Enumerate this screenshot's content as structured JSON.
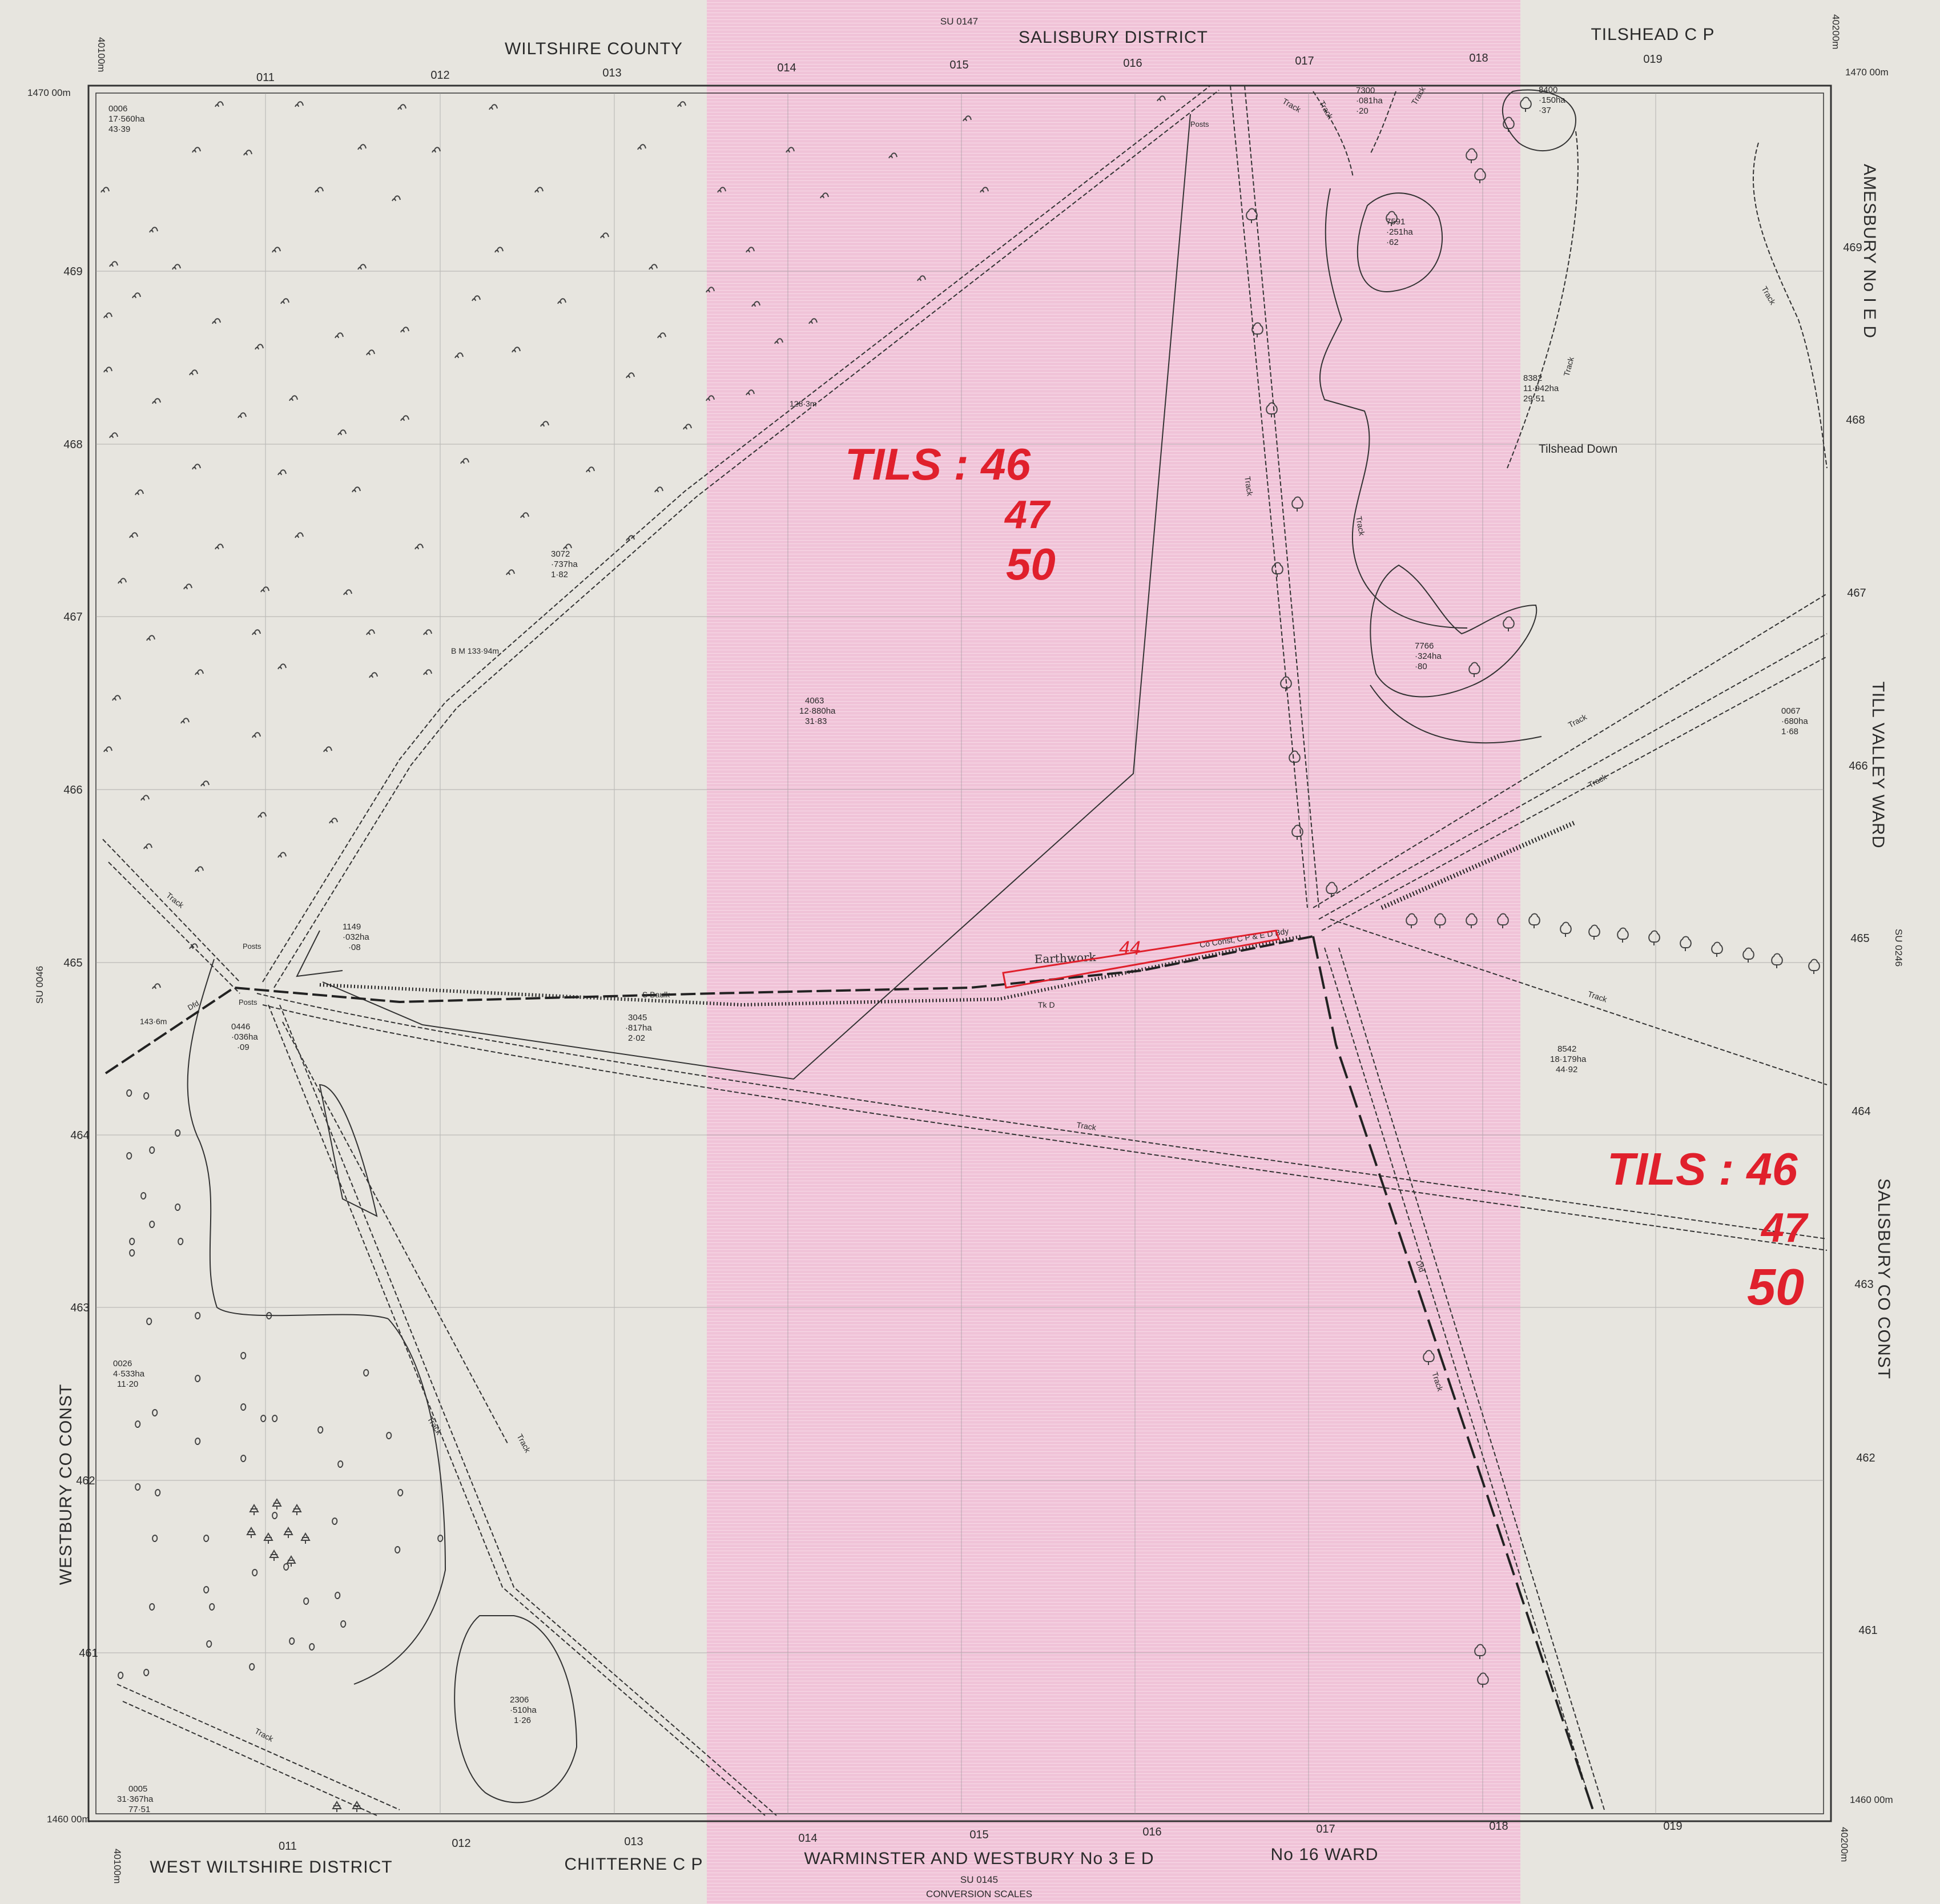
{
  "sheet": {
    "top_ref": "SU 0147",
    "bottom_ref": "SU 0145",
    "left_ref": "SU 0046",
    "right_ref": "SU 0246",
    "bottom_caption": "CONVERSION SCALES"
  },
  "boundaries": {
    "top_left": "WILTSHIRE COUNTY",
    "top_center": "SALISBURY DISTRICT",
    "top_right": "TILSHEAD C P",
    "right_upper": "AMESBURY No I E D",
    "right_middle": "TILL VALLEY WARD",
    "right_lower": "SALISBURY CO CONST",
    "left": "WESTBURY CO CONST",
    "bottom_1": "WEST WILTSHIRE DISTRICT",
    "bottom_2": "CHITTERNE C P",
    "bottom_3": "WARMINSTER AND WESTBURY No 3 E D",
    "bottom_4": "No 16 WARD"
  },
  "grid": {
    "eastings": [
      "011",
      "012",
      "013",
      "014",
      "015",
      "016",
      "017",
      "018",
      "019"
    ],
    "northings": [
      "469",
      "468",
      "467",
      "466",
      "465",
      "464",
      "463",
      "462",
      "461"
    ],
    "corner_nw_e": "40100m",
    "corner_nw_n": "1470 00m",
    "corner_ne_e": "40200m",
    "corner_ne_n": "1470 00m",
    "corner_sw_e": "40100m",
    "corner_sw_n": "1460 00m",
    "corner_se_e": "40200m",
    "corner_se_n": "1460 00m"
  },
  "parcels": [
    {
      "id": "0006",
      "ha": "17·560ha",
      "ac": "43·39"
    },
    {
      "id": "7300",
      "ha": "·081ha",
      "ac": "·20"
    },
    {
      "id": "8400",
      "ha": "·150ha",
      "ac": "·37"
    },
    {
      "id": "7591",
      "ha": "·251ha",
      "ac": "·62"
    },
    {
      "id": "8382",
      "ha": "11·942ha",
      "ac": "29·51"
    },
    {
      "id": "3072",
      "ha": "·737ha",
      "ac": "1·82"
    },
    {
      "id": "7766",
      "ha": "·324ha",
      "ac": "·80"
    },
    {
      "id": "4063",
      "ha": "12·880ha",
      "ac": "31·83"
    },
    {
      "id": "0067",
      "ha": "·680ha",
      "ac": "1·68"
    },
    {
      "id": "1149",
      "ha": "·032ha",
      "ac": "·08"
    },
    {
      "id": "3045",
      "ha": "·817ha",
      "ac": "2·02"
    },
    {
      "id": "0446",
      "ha": "·036ha",
      "ac": "·09"
    },
    {
      "id": "8542",
      "ha": "18·179ha",
      "ac": "44·92"
    },
    {
      "id": "0026",
      "ha": "4·533ha",
      "ac": "11·20"
    },
    {
      "id": "2306",
      "ha": "·510ha",
      "ac": "1·26"
    },
    {
      "id": "0005",
      "ha": "31·367ha",
      "ac": "77·51"
    }
  ],
  "features": {
    "tilshead_down": "Tilshead Down",
    "track": "Track",
    "posts": "Posts",
    "earthwork": "Earthwork",
    "bm": "B M  133·94m",
    "spot_128": "128·3m",
    "spot_143": "143·6m",
    "s_baulk": "S Baulk",
    "tk_d": "Tk D",
    "co_const": "Co Const, C P & E D Bdy",
    "dismantled": "Dfd"
  },
  "annotations": {
    "label_1_line1": "TILS : 46",
    "label_1_line2": "47",
    "label_1_line3": "50",
    "label_2_line1": "TILS : 46",
    "label_2_line2": "47",
    "label_2_line3": "50",
    "earthwork_number": "44"
  },
  "colors": {
    "paper": "#e7e5df",
    "highlight_band": "#f1c6da",
    "ink": "#2a2a2a",
    "annotation_red": "#e0202c"
  }
}
